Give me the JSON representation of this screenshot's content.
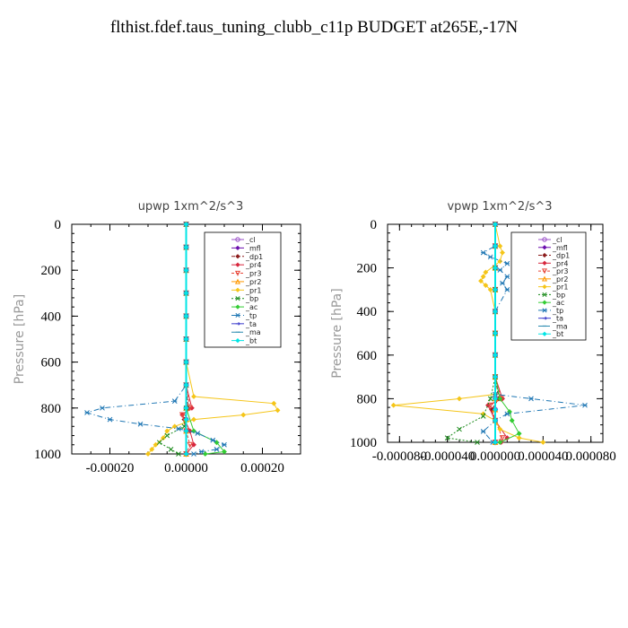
{
  "title": "flthist.fdef.taus_tuning_clubb_c11p  BUDGET at265E,-17N",
  "chart_data": [
    {
      "type": "line",
      "title": "upwp   1xm^2/s^3",
      "ylabel": "Pressure [hPa]",
      "xlabel": "",
      "xlim": [
        -0.0003,
        0.0003
      ],
      "ylim": [
        1000,
        0
      ],
      "xticks": [
        -0.0002,
        0.0,
        0.0002
      ],
      "xtick_labels": [
        "-0.00020",
        "0.00000",
        "0.00020"
      ],
      "yticks": [
        0,
        200,
        400,
        600,
        800,
        1000
      ],
      "ytick_labels": [
        "0",
        "200",
        "400",
        "600",
        "800",
        "1000"
      ],
      "legend_position": "top-right",
      "series": [
        {
          "name": "_cl",
          "color": "#9a4fc8",
          "marker": "circle",
          "x": [
            0,
            0,
            0,
            0,
            0,
            0,
            0,
            0,
            0,
            0,
            0,
            0
          ],
          "y": [
            0,
            100,
            200,
            300,
            400,
            500,
            600,
            700,
            800,
            850,
            900,
            1000
          ]
        },
        {
          "name": "_mfl",
          "color": "#6a0dad",
          "marker": "diamond",
          "x": [
            0,
            0,
            0,
            0,
            0,
            0,
            0,
            0,
            0,
            0,
            0,
            0
          ],
          "y": [
            0,
            100,
            200,
            300,
            400,
            500,
            600,
            700,
            800,
            850,
            900,
            1000
          ]
        },
        {
          "name": "_dp1",
          "color": "#8b1a1a",
          "marker": "diamond",
          "x": [
            0,
            0,
            0,
            0,
            0,
            0,
            0,
            0,
            5e-06,
            -5e-06,
            0,
            0
          ],
          "y": [
            0,
            100,
            200,
            300,
            400,
            500,
            600,
            700,
            800,
            850,
            900,
            1000
          ]
        },
        {
          "name": "_pr4",
          "color": "#d7263d",
          "marker": "diamond",
          "x": [
            0,
            0,
            0,
            0,
            0,
            0,
            0,
            0,
            1.5e-05,
            -1e-05,
            1e-05,
            2e-05,
            0
          ],
          "y": [
            0,
            100,
            200,
            300,
            400,
            500,
            600,
            700,
            800,
            830,
            900,
            960,
            1000
          ]
        },
        {
          "name": "_pr3",
          "color": "#e8483b",
          "marker": "triangle-down",
          "x": [
            0,
            0,
            0,
            0,
            0,
            0,
            0,
            0,
            1e-05,
            -1e-05,
            0,
            1e-05,
            0
          ],
          "y": [
            0,
            100,
            200,
            300,
            400,
            500,
            600,
            700,
            800,
            830,
            900,
            960,
            1000
          ]
        },
        {
          "name": "_pr2",
          "color": "#ff9900",
          "marker": "triangle-up",
          "x": [
            0,
            0,
            0,
            0,
            0,
            0,
            0,
            0,
            0,
            0,
            0,
            0
          ],
          "y": [
            0,
            100,
            200,
            300,
            400,
            500,
            600,
            700,
            800,
            850,
            900,
            1000
          ]
        },
        {
          "name": "_pr1",
          "color": "#f5c518",
          "marker": "diamond",
          "x": [
            0,
            0,
            0,
            0,
            0,
            0,
            0,
            2e-05,
            0.00023,
            0.00024,
            0.00015,
            2e-05,
            -3e-05,
            -5e-05,
            -6e-05,
            -8e-05,
            -9e-05,
            -0.0001
          ],
          "y": [
            0,
            100,
            200,
            300,
            400,
            500,
            600,
            750,
            780,
            810,
            830,
            850,
            880,
            900,
            930,
            960,
            980,
            1000
          ]
        },
        {
          "name": "_bp",
          "color": "#1a8a1a",
          "marker": "x",
          "x": [
            0,
            0,
            0,
            0,
            0,
            0,
            0,
            0,
            0,
            -5e-06,
            -5e-05,
            -7e-05,
            -4e-05,
            -2e-05
          ],
          "y": [
            0,
            100,
            200,
            300,
            400,
            500,
            600,
            700,
            800,
            880,
            920,
            950,
            980,
            1000
          ]
        },
        {
          "name": "_ac",
          "color": "#33cc33",
          "marker": "diamond",
          "x": [
            0,
            0,
            0,
            0,
            0,
            0,
            0,
            0,
            0,
            2e-05,
            8e-05,
            0.0001,
            5e-05
          ],
          "y": [
            0,
            100,
            200,
            300,
            400,
            500,
            600,
            700,
            800,
            900,
            950,
            990,
            1000
          ]
        },
        {
          "name": "_tp",
          "color": "#1f77b4",
          "marker": "star",
          "x": [
            0,
            0,
            0,
            0,
            0,
            0,
            0,
            0,
            -3e-05,
            -0.00022,
            -0.00026,
            -0.0002,
            -0.00012,
            -2e-05,
            3e-05,
            7e-05,
            0.0001,
            8e-05,
            4e-05,
            2e-05
          ],
          "y": [
            0,
            100,
            200,
            300,
            400,
            500,
            600,
            700,
            770,
            800,
            820,
            850,
            870,
            890,
            910,
            940,
            960,
            980,
            990,
            1000
          ]
        },
        {
          "name": "_ta",
          "color": "#3a3acc",
          "marker": "arrow",
          "x": [
            0,
            0,
            0,
            0,
            0,
            0,
            0,
            0,
            0,
            0,
            0,
            0
          ],
          "y": [
            0,
            100,
            200,
            300,
            400,
            500,
            600,
            700,
            800,
            850,
            900,
            1000
          ]
        },
        {
          "name": "_ma",
          "color": "#2a8ab0",
          "marker": "dash",
          "x": [
            0,
            0,
            0,
            0,
            0,
            0,
            0,
            0,
            0,
            0,
            0,
            0
          ],
          "y": [
            0,
            100,
            200,
            300,
            400,
            500,
            600,
            700,
            800,
            850,
            900,
            1000
          ]
        },
        {
          "name": "_bt",
          "color": "#00e5e5",
          "marker": "diamond",
          "x": [
            0,
            0,
            0,
            0,
            0,
            0,
            0,
            0,
            0,
            0,
            0,
            0
          ],
          "y": [
            0,
            100,
            200,
            300,
            400,
            500,
            600,
            700,
            800,
            850,
            900,
            1000
          ]
        }
      ]
    },
    {
      "type": "line",
      "title": "vpwp   1xm^2/s^3",
      "ylabel": "Pressure [hPa]",
      "xlabel": "",
      "xlim": [
        -9e-05,
        9e-05
      ],
      "ylim": [
        1000,
        0
      ],
      "xticks": [
        -8e-05,
        -4e-05,
        0.0,
        4e-05,
        8e-05
      ],
      "xtick_labels": [
        "-0.000080",
        "-0.000040",
        "0.000000",
        "0.000040",
        "0.000080"
      ],
      "yticks": [
        0,
        200,
        400,
        600,
        800,
        1000
      ],
      "ytick_labels": [
        "0",
        "200",
        "400",
        "600",
        "800",
        "1000"
      ],
      "legend_position": "top-right",
      "series": [
        {
          "name": "_cl",
          "color": "#9a4fc8",
          "marker": "circle",
          "x": [
            0,
            0,
            0,
            0,
            0,
            0,
            0,
            0,
            0,
            0,
            0,
            0
          ],
          "y": [
            0,
            100,
            200,
            300,
            400,
            500,
            600,
            700,
            800,
            850,
            900,
            1000
          ]
        },
        {
          "name": "_mfl",
          "color": "#6a0dad",
          "marker": "diamond",
          "x": [
            0,
            0,
            0,
            0,
            0,
            0,
            0,
            0,
            0,
            0,
            0,
            0
          ],
          "y": [
            0,
            100,
            200,
            300,
            400,
            500,
            600,
            700,
            800,
            850,
            900,
            1000
          ]
        },
        {
          "name": "_dp1",
          "color": "#8b1a1a",
          "marker": "diamond",
          "x": [
            0,
            0,
            0,
            0,
            0,
            0,
            0,
            0,
            3e-06,
            -3e-06,
            0,
            0
          ],
          "y": [
            0,
            100,
            200,
            300,
            400,
            500,
            600,
            700,
            800,
            850,
            900,
            1000
          ]
        },
        {
          "name": "_pr4",
          "color": "#d7263d",
          "marker": "diamond",
          "x": [
            0,
            0,
            0,
            0,
            0,
            0,
            0,
            0,
            6e-06,
            -6e-06,
            0,
            1e-05,
            5e-06
          ],
          "y": [
            0,
            100,
            200,
            300,
            400,
            500,
            600,
            700,
            800,
            830,
            900,
            980,
            1000
          ]
        },
        {
          "name": "_pr3",
          "color": "#e8483b",
          "marker": "triangle-down",
          "x": [
            0,
            0,
            0,
            0,
            0,
            0,
            0,
            0,
            5e-06,
            -4e-06,
            0,
            6e-06,
            0
          ],
          "y": [
            0,
            100,
            200,
            300,
            400,
            500,
            600,
            700,
            800,
            830,
            900,
            980,
            1000
          ]
        },
        {
          "name": "_pr2",
          "color": "#ff9900",
          "marker": "triangle-up",
          "x": [
            0,
            0,
            0,
            0,
            0,
            0,
            0,
            0,
            0,
            0,
            0,
            0
          ],
          "y": [
            0,
            100,
            200,
            300,
            400,
            500,
            600,
            700,
            800,
            850,
            900,
            1000
          ]
        },
        {
          "name": "_pr1",
          "color": "#f5c518",
          "marker": "diamond",
          "x": [
            0,
            4e-06,
            6e-06,
            4e-06,
            -8e-06,
            -1e-05,
            -1.2e-05,
            -8e-06,
            -4e-06,
            0,
            0,
            0,
            -3e-05,
            -8.5e-05,
            -1e-05,
            0,
            4e-06,
            2e-05,
            4e-05
          ],
          "y": [
            0,
            100,
            130,
            170,
            220,
            240,
            260,
            280,
            300,
            400,
            600,
            780,
            800,
            830,
            870,
            900,
            940,
            980,
            1000
          ]
        },
        {
          "name": "_bp",
          "color": "#1a8a1a",
          "marker": "x",
          "x": [
            0,
            0,
            0,
            0,
            0,
            0,
            0,
            0,
            -4e-06,
            -1e-05,
            -3e-05,
            -4e-05,
            -1.5e-05
          ],
          "y": [
            0,
            100,
            200,
            300,
            400,
            500,
            600,
            700,
            800,
            880,
            940,
            980,
            1000
          ]
        },
        {
          "name": "_ac",
          "color": "#33cc33",
          "marker": "diamond",
          "x": [
            0,
            0,
            0,
            0,
            0,
            0,
            0,
            0,
            4e-06,
            1.2e-05,
            1.4e-05,
            2e-05,
            4e-06
          ],
          "y": [
            0,
            100,
            200,
            300,
            400,
            500,
            600,
            700,
            800,
            860,
            900,
            960,
            1000
          ]
        },
        {
          "name": "_tp",
          "color": "#1f77b4",
          "marker": "star",
          "x": [
            0,
            0,
            -1e-05,
            -4e-06,
            1e-05,
            4e-06,
            1e-05,
            6e-06,
            1e-05,
            0,
            0,
            0,
            3e-05,
            7.5e-05,
            1e-05,
            0,
            -1e-05,
            -2e-06
          ],
          "y": [
            0,
            100,
            130,
            150,
            180,
            210,
            240,
            270,
            300,
            400,
            600,
            780,
            800,
            830,
            870,
            900,
            950,
            1000
          ]
        },
        {
          "name": "_ta",
          "color": "#3a3acc",
          "marker": "arrow",
          "x": [
            0,
            0,
            0,
            0,
            0,
            0,
            0,
            0,
            0,
            0,
            0,
            0
          ],
          "y": [
            0,
            100,
            200,
            300,
            400,
            500,
            600,
            700,
            800,
            850,
            900,
            1000
          ]
        },
        {
          "name": "_ma",
          "color": "#2a8ab0",
          "marker": "dash",
          "x": [
            0,
            0,
            0,
            0,
            0,
            0,
            0,
            0,
            0,
            0,
            0,
            0
          ],
          "y": [
            0,
            100,
            200,
            300,
            400,
            500,
            600,
            700,
            800,
            850,
            900,
            1000
          ]
        },
        {
          "name": "_bt",
          "color": "#00e5e5",
          "marker": "diamond",
          "x": [
            0,
            0,
            0,
            0,
            0,
            0,
            0,
            0,
            0,
            0,
            0,
            0
          ],
          "y": [
            0,
            100,
            200,
            300,
            400,
            500,
            600,
            700,
            800,
            850,
            900,
            1000
          ]
        }
      ]
    }
  ]
}
